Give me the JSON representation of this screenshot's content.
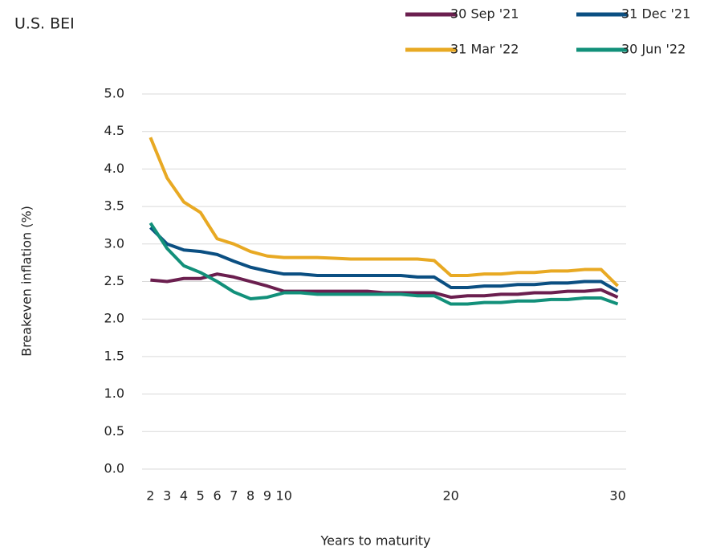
{
  "chart_data": {
    "type": "line",
    "title": "U.S. BEI",
    "x_label": "Years to maturity",
    "y_label": "Breakeven inflation (%)",
    "x": [
      2,
      3,
      4,
      5,
      6,
      7,
      8,
      9,
      10,
      11,
      12,
      13,
      14,
      15,
      16,
      17,
      18,
      19,
      20,
      21,
      22,
      23,
      24,
      25,
      26,
      27,
      28,
      29,
      30
    ],
    "series": [
      {
        "name": "30 Sep '21",
        "color": "#6b1f4f",
        "values": [
          2.52,
          2.5,
          2.54,
          2.54,
          2.6,
          2.56,
          2.5,
          2.44,
          2.37,
          2.37,
          2.37,
          2.37,
          2.37,
          2.37,
          2.35,
          2.35,
          2.35,
          2.35,
          2.29,
          2.31,
          2.31,
          2.33,
          2.33,
          2.35,
          2.35,
          2.37,
          2.37,
          2.39,
          2.29
        ]
      },
      {
        "name": "31 Dec '21",
        "color": "#0b4f82",
        "values": [
          3.22,
          3.0,
          2.92,
          2.9,
          2.86,
          2.77,
          2.69,
          2.64,
          2.6,
          2.6,
          2.58,
          2.58,
          2.58,
          2.58,
          2.58,
          2.58,
          2.56,
          2.56,
          2.42,
          2.42,
          2.44,
          2.44,
          2.46,
          2.46,
          2.48,
          2.48,
          2.5,
          2.5,
          2.37
        ]
      },
      {
        "name": "31 Mar '22",
        "color": "#e8a923",
        "values": [
          4.42,
          3.88,
          3.56,
          3.42,
          3.07,
          3.0,
          2.9,
          2.84,
          2.82,
          2.82,
          2.82,
          2.81,
          2.8,
          2.8,
          2.8,
          2.8,
          2.8,
          2.78,
          2.58,
          2.58,
          2.6,
          2.6,
          2.62,
          2.62,
          2.64,
          2.64,
          2.66,
          2.66,
          2.44
        ]
      },
      {
        "name": "30 Jun '22",
        "color": "#12907a",
        "values": [
          3.28,
          2.94,
          2.71,
          2.62,
          2.5,
          2.36,
          2.27,
          2.29,
          2.35,
          2.35,
          2.33,
          2.33,
          2.33,
          2.33,
          2.33,
          2.33,
          2.31,
          2.31,
          2.2,
          2.2,
          2.22,
          2.22,
          2.24,
          2.24,
          2.26,
          2.26,
          2.28,
          2.28,
          2.2
        ]
      }
    ],
    "xlim": [
      1.5,
      30.5
    ],
    "xticks": [
      2,
      3,
      4,
      5,
      6,
      7,
      8,
      9,
      10,
      20,
      30
    ],
    "ylim": [
      0,
      5
    ],
    "yticks": [
      {
        "value": 0,
        "label": "0.0"
      },
      {
        "value": 0.5,
        "label": "0.5"
      },
      {
        "value": 1,
        "label": "1.0"
      },
      {
        "value": 1.5,
        "label": "1.5"
      },
      {
        "value": 2,
        "label": "2.0"
      },
      {
        "value": 2.5,
        "label": "2.5"
      },
      {
        "value": 3,
        "label": "3.0"
      },
      {
        "value": 3.5,
        "label": "3.5"
      },
      {
        "value": 4,
        "label": "4.0"
      },
      {
        "value": 4.5,
        "label": "4.5"
      },
      {
        "value": 5,
        "label": "5.0"
      }
    ],
    "grid": true
  }
}
